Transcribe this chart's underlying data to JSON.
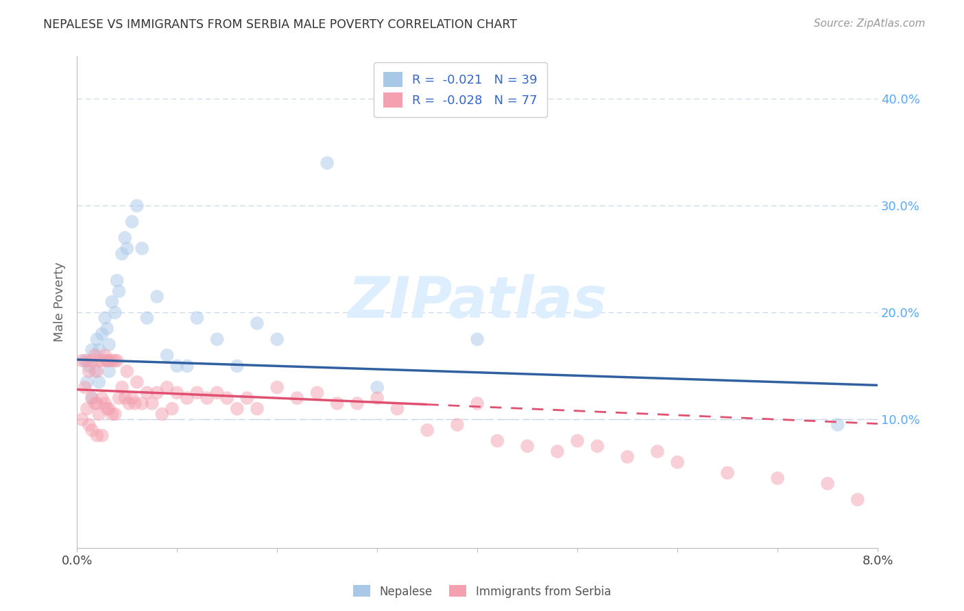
{
  "title": "NEPALESE VS IMMIGRANTS FROM SERBIA MALE POVERTY CORRELATION CHART",
  "source": "Source: ZipAtlas.com",
  "ylabel": "Male Poverty",
  "y_ticks": [
    0.0,
    0.1,
    0.2,
    0.3,
    0.4
  ],
  "y_tick_labels": [
    "",
    "10.0%",
    "20.0%",
    "30.0%",
    "40.0%"
  ],
  "x_range": [
    0.0,
    0.08
  ],
  "y_range": [
    -0.02,
    0.44
  ],
  "legend_r1": "R =  -0.021",
  "legend_n1": "N = 39",
  "legend_r2": "R =  -0.028",
  "legend_n2": "N = 77",
  "color_blue": "#a8c8e8",
  "color_pink": "#f4a0b0",
  "color_blue_line": "#3060a0",
  "color_pink_line": "#e05070",
  "color_grid": "#c8d8e8",
  "nepalese_x": [
    0.0008,
    0.001,
    0.0012,
    0.0015,
    0.0015,
    0.0018,
    0.002,
    0.0022,
    0.0022,
    0.0025,
    0.0028,
    0.003,
    0.003,
    0.0032,
    0.0032,
    0.0035,
    0.0038,
    0.004,
    0.0042,
    0.0045,
    0.0048,
    0.005,
    0.0055,
    0.006,
    0.0065,
    0.007,
    0.008,
    0.009,
    0.01,
    0.011,
    0.012,
    0.014,
    0.016,
    0.018,
    0.02,
    0.025,
    0.03,
    0.04,
    0.076
  ],
  "nepalese_y": [
    0.155,
    0.135,
    0.15,
    0.165,
    0.12,
    0.145,
    0.175,
    0.165,
    0.135,
    0.18,
    0.195,
    0.185,
    0.155,
    0.17,
    0.145,
    0.21,
    0.2,
    0.23,
    0.22,
    0.255,
    0.27,
    0.26,
    0.285,
    0.3,
    0.26,
    0.195,
    0.215,
    0.16,
    0.15,
    0.15,
    0.195,
    0.175,
    0.15,
    0.19,
    0.175,
    0.34,
    0.13,
    0.175,
    0.095
  ],
  "serbia_x": [
    0.0005,
    0.0005,
    0.0008,
    0.001,
    0.001,
    0.0012,
    0.0012,
    0.0015,
    0.0015,
    0.0015,
    0.0018,
    0.0018,
    0.002,
    0.002,
    0.002,
    0.0022,
    0.0022,
    0.0025,
    0.0025,
    0.0025,
    0.0028,
    0.0028,
    0.003,
    0.003,
    0.0032,
    0.0032,
    0.0035,
    0.0035,
    0.0038,
    0.0038,
    0.004,
    0.0042,
    0.0045,
    0.0048,
    0.005,
    0.0052,
    0.0055,
    0.0058,
    0.006,
    0.0065,
    0.007,
    0.0075,
    0.008,
    0.0085,
    0.009,
    0.0095,
    0.01,
    0.011,
    0.012,
    0.013,
    0.014,
    0.015,
    0.016,
    0.017,
    0.018,
    0.02,
    0.022,
    0.024,
    0.026,
    0.028,
    0.03,
    0.032,
    0.035,
    0.038,
    0.04,
    0.042,
    0.045,
    0.048,
    0.05,
    0.052,
    0.055,
    0.058,
    0.06,
    0.065,
    0.07,
    0.075,
    0.078
  ],
  "serbia_y": [
    0.155,
    0.1,
    0.13,
    0.155,
    0.11,
    0.145,
    0.095,
    0.155,
    0.12,
    0.09,
    0.16,
    0.115,
    0.145,
    0.115,
    0.085,
    0.155,
    0.105,
    0.155,
    0.12,
    0.085,
    0.16,
    0.115,
    0.155,
    0.11,
    0.155,
    0.11,
    0.155,
    0.105,
    0.155,
    0.105,
    0.155,
    0.12,
    0.13,
    0.12,
    0.145,
    0.115,
    0.12,
    0.115,
    0.135,
    0.115,
    0.125,
    0.115,
    0.125,
    0.105,
    0.13,
    0.11,
    0.125,
    0.12,
    0.125,
    0.12,
    0.125,
    0.12,
    0.11,
    0.12,
    0.11,
    0.13,
    0.12,
    0.125,
    0.115,
    0.115,
    0.12,
    0.11,
    0.09,
    0.095,
    0.115,
    0.08,
    0.075,
    0.07,
    0.08,
    0.075,
    0.065,
    0.07,
    0.06,
    0.05,
    0.045,
    0.04,
    0.025
  ],
  "background_color": "#ffffff",
  "watermark": "ZIPatlas",
  "watermark_color": "#ddeeff"
}
